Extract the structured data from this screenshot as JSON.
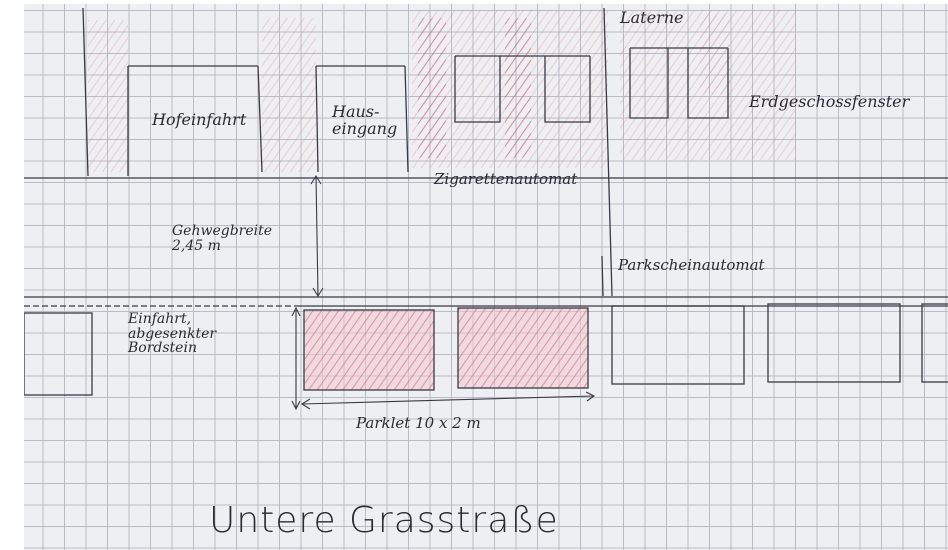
{
  "labels": {
    "laterne": "Laterne",
    "hofeinfahrt": "Hofeinfahrt",
    "hauseingang": "Haus-\neingang",
    "erdgeschossfenster": "Erdgeschossfenster",
    "zigarettenautomat": "Zigarettenautomat",
    "gehwegbreite": "Gehwegbreite\n2,45 m",
    "parkscheinautomat": "Parkscheinautomat",
    "einfahrt": "Einfahrt,\nabgesenkter\nBordstein",
    "parklet": "Parklet 10 x 2 m"
  },
  "title": "Untere Grasstraße",
  "colors": {
    "ink": "#2b2b33",
    "pencil_red": "#d9707c",
    "paper": "#eeeff2",
    "grid": "#b9bcc6"
  }
}
